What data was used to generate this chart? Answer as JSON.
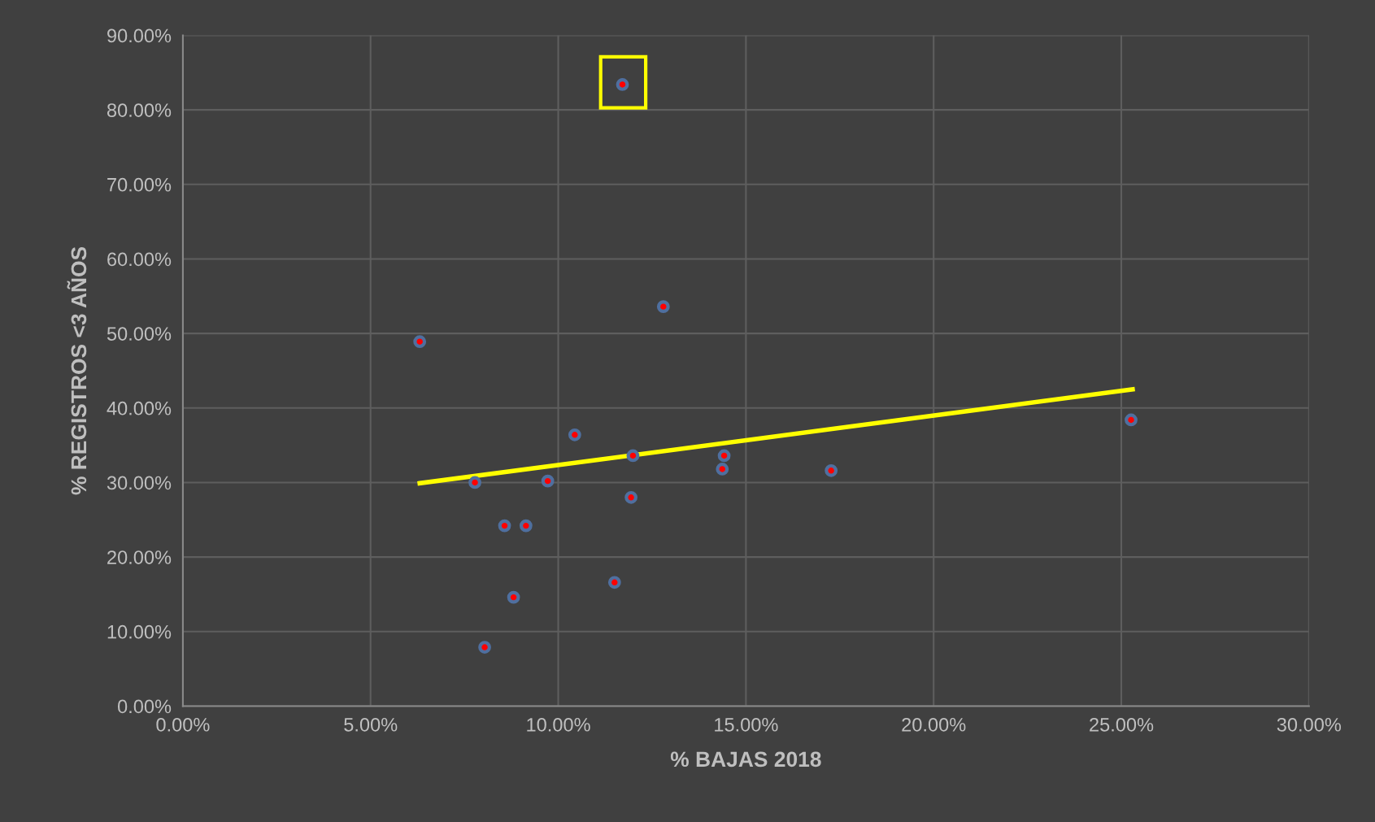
{
  "chart_data": {
    "type": "scatter",
    "xlabel": "% BAJAS 2018",
    "ylabel": "% REGISTROS <3 AÑOS",
    "x": [
      11.71,
      12.8,
      6.31,
      10.44,
      25.26,
      11.99,
      14.42,
      14.37,
      17.27,
      7.78,
      9.72,
      11.94,
      8.57,
      9.14,
      11.5,
      8.81,
      8.04
    ],
    "series": [
      {
        "color": "#ff0000",
        "values": [
          83.4,
          53.6,
          48.9,
          36.4,
          38.4,
          33.6,
          33.6,
          31.8,
          31.6,
          30.0,
          30.2,
          28.0,
          24.2,
          24.2,
          16.6,
          14.6,
          7.9
        ]
      },
      {
        "type": "line",
        "color": "#ffff00",
        "x": [
          6.31,
          25.3
        ],
        "values": [
          29.9,
          42.5
        ],
        "marker": "none"
      }
    ],
    "marker": "circle",
    "grid": true,
    "legend": false,
    "xlim": [
      0,
      30
    ],
    "xticks": [
      {
        "value": 0,
        "label": "0.00%"
      },
      {
        "value": 5,
        "label": "5.00%"
      },
      {
        "value": 10,
        "label": "10.00%"
      },
      {
        "value": 15,
        "label": "15.00%"
      },
      {
        "value": 20,
        "label": "20.00%"
      },
      {
        "value": 25,
        "label": "25.00%"
      },
      {
        "value": 30,
        "label": "30.00%"
      }
    ],
    "ylim": [
      0,
      90
    ],
    "yticks": [
      {
        "value": 0,
        "label": "0.00%"
      },
      {
        "value": 10,
        "label": "10.00%"
      },
      {
        "value": 20,
        "label": "20.00%"
      },
      {
        "value": 30,
        "label": "30.00%"
      },
      {
        "value": 40,
        "label": "40.00%"
      },
      {
        "value": 50,
        "label": "50.00%"
      },
      {
        "value": 60,
        "label": "60.00%"
      },
      {
        "value": 70,
        "label": "70.00%"
      },
      {
        "value": 80,
        "label": "80.00%"
      },
      {
        "value": 90,
        "label": "90.00%"
      }
    ]
  }
}
